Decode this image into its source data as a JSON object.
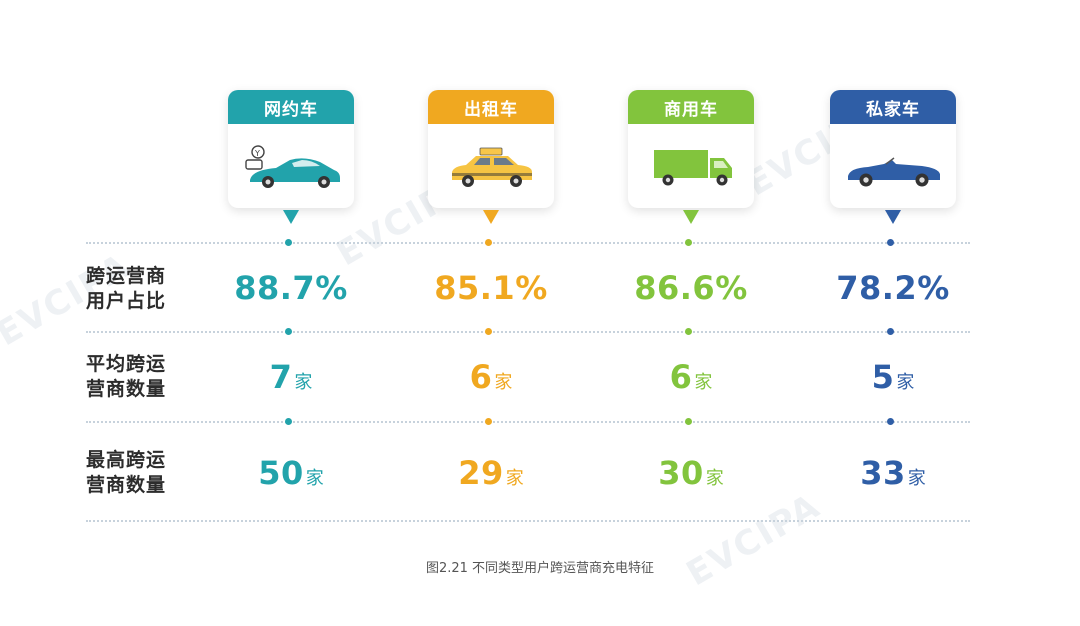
{
  "columns": [
    {
      "name": "网约车",
      "color": "#22a3ab",
      "icon": "ride-hailing-car-icon"
    },
    {
      "name": "出租车",
      "color": "#f0a820",
      "icon": "taxi-icon"
    },
    {
      "name": "商用车",
      "color": "#82c43d",
      "icon": "truck-icon"
    },
    {
      "name": "私家车",
      "color": "#2f5ea6",
      "icon": "convertible-car-icon"
    }
  ],
  "rows": [
    {
      "label": "跨运营商用户占比",
      "label_line1": "跨运营商",
      "label_line2": "用户占比"
    },
    {
      "label": "平均跨运营商数量",
      "label_line1": "平均跨运",
      "label_line2": "营商数量"
    },
    {
      "label": "最高跨运营商数量",
      "label_line1": "最高跨运",
      "label_line2": "营商数量"
    }
  ],
  "unit": "家",
  "chart_data": {
    "type": "table",
    "categories": [
      "网约车",
      "出租车",
      "商用车",
      "私家车"
    ],
    "series": [
      {
        "name": "跨运营商用户占比",
        "values": [
          88.7,
          85.1,
          86.6,
          78.2
        ],
        "display": [
          "88.7%",
          "85.1%",
          "86.6%",
          "78.2%"
        ]
      },
      {
        "name": "平均跨运营商数量",
        "values": [
          7,
          6,
          6,
          5
        ],
        "display": [
          "7",
          "6",
          "6",
          "5"
        ]
      },
      {
        "name": "最高跨运营商数量",
        "values": [
          50,
          29,
          30,
          33
        ],
        "display": [
          "50",
          "29",
          "30",
          "33"
        ]
      }
    ]
  },
  "caption": "图2.21 不同类型用户跨运营商充电特征",
  "watermark": "EVCIPA"
}
